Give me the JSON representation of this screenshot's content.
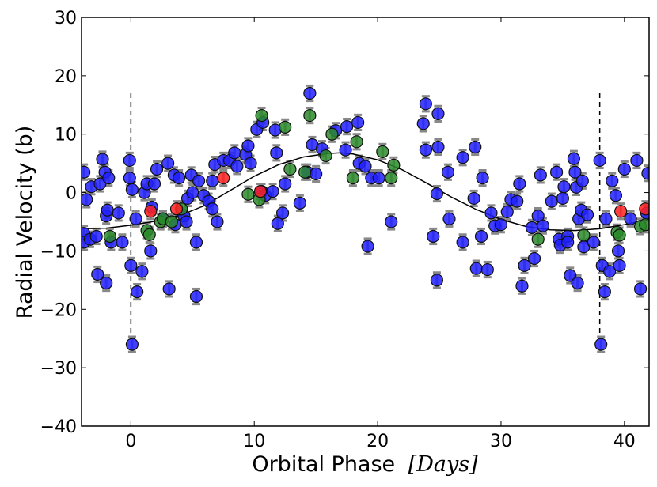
{
  "chart_data": {
    "type": "scatter",
    "xlabel": "Orbital Phase",
    "xlabel_math": "[Days]",
    "ylabel": "Radial Velocity (b)",
    "xlim": [
      -4,
      42
    ],
    "ylim": [
      -40,
      30
    ],
    "x_ticks": [
      0,
      10,
      20,
      30,
      40
    ],
    "x_tick_labels": [
      "0",
      "10",
      "20",
      "30",
      "40"
    ],
    "y_ticks": [
      -40,
      -30,
      -20,
      -10,
      0,
      10,
      20,
      30
    ],
    "y_tick_labels": [
      "−40",
      "−30",
      "−20",
      "−10",
      "0",
      "10",
      "20",
      "30"
    ],
    "grid": false,
    "period_markers": [
      0,
      38
    ],
    "model_curve": {
      "name": "fit",
      "x": [
        -4,
        -2,
        0,
        2,
        4,
        6,
        8,
        10,
        12,
        14,
        16,
        17,
        18,
        20,
        22,
        24,
        26,
        28,
        30,
        32,
        34,
        36,
        38,
        40,
        42
      ],
      "y": [
        -6.2,
        -6.1,
        -5.6,
        -4.9,
        -3.9,
        -2.2,
        0.3,
        2.8,
        4.8,
        6.1,
        6.7,
        6.8,
        6.6,
        5.6,
        3.9,
        1.6,
        -0.8,
        -2.9,
        -4.6,
        -5.8,
        -6.4,
        -6.5,
        -6.2,
        -5.5,
        -4.6
      ],
      "color": "#000000"
    },
    "series": [
      {
        "name": "blue",
        "color": "#2020ff",
        "points": [
          [
            -3.8,
            3.5
          ],
          [
            -3.8,
            -7
          ],
          [
            -3.8,
            -8.5
          ],
          [
            -3.6,
            -1.2
          ],
          [
            -3.3,
            -8
          ],
          [
            -3.2,
            1
          ],
          [
            -2.8,
            -7.5
          ],
          [
            -2.7,
            -14
          ],
          [
            -2.5,
            1.5
          ],
          [
            -2.3,
            5.7
          ],
          [
            -2.1,
            3.5
          ],
          [
            -2,
            -4
          ],
          [
            -2,
            -15.5
          ],
          [
            -1.9,
            -3
          ],
          [
            -1.8,
            2.5
          ],
          [
            -1.6,
            -8.5
          ],
          [
            -1,
            -3.5
          ],
          [
            -0.7,
            -8.5
          ],
          [
            -0.1,
            5.5
          ],
          [
            -0.1,
            2.5
          ],
          [
            0,
            -12.5
          ],
          [
            0.1,
            -26
          ],
          [
            0.1,
            0.5
          ],
          [
            0.4,
            -4.5
          ],
          [
            0.5,
            -17
          ],
          [
            0.9,
            -13.5
          ],
          [
            1.1,
            0
          ],
          [
            1.3,
            1.5
          ],
          [
            1.6,
            -10
          ],
          [
            1.7,
            -2.5
          ],
          [
            1.9,
            1.5
          ],
          [
            2.1,
            4
          ],
          [
            2.6,
            -4.5
          ],
          [
            3,
            5
          ],
          [
            3.1,
            -16.5
          ],
          [
            3.5,
            3
          ],
          [
            3.6,
            -5.5
          ],
          [
            3.9,
            2.5
          ],
          [
            4.3,
            -4
          ],
          [
            4.5,
            -5
          ],
          [
            4.6,
            -1
          ],
          [
            4.9,
            3
          ],
          [
            5,
            0
          ],
          [
            5.3,
            -8.5
          ],
          [
            5.3,
            -17.8
          ],
          [
            5.5,
            2
          ],
          [
            5.9,
            -0.5
          ],
          [
            6.3,
            -1.5
          ],
          [
            6.6,
            2
          ],
          [
            6.6,
            -2.8
          ],
          [
            6.8,
            4.8
          ],
          [
            7,
            -5
          ],
          [
            7.5,
            5.5
          ],
          [
            8,
            5.5
          ],
          [
            8.4,
            6.8
          ],
          [
            8.6,
            4.5
          ],
          [
            9.3,
            6.5
          ],
          [
            9.5,
            8
          ],
          [
            9.7,
            5
          ],
          [
            10.2,
            10.8
          ],
          [
            10.6,
            0.2
          ],
          [
            10.7,
            12
          ],
          [
            10.9,
            -0.5
          ],
          [
            11.5,
            0.2
          ],
          [
            11.7,
            10.7
          ],
          [
            11.8,
            6.8
          ],
          [
            11.9,
            -5.3
          ],
          [
            12.3,
            -3.5
          ],
          [
            12.5,
            1.5
          ],
          [
            13.7,
            -1.8
          ],
          [
            14.3,
            3.5
          ],
          [
            14.5,
            17
          ],
          [
            14.7,
            8.2
          ],
          [
            15,
            3.2
          ],
          [
            15.5,
            7.5
          ],
          [
            16.6,
            10.6
          ],
          [
            17.4,
            7.3
          ],
          [
            17.5,
            11.3
          ],
          [
            18.4,
            12
          ],
          [
            18.5,
            5
          ],
          [
            19,
            4.5
          ],
          [
            19.2,
            -9.2
          ],
          [
            19.5,
            2.5
          ],
          [
            20.1,
            2.5
          ],
          [
            21.1,
            -5
          ],
          [
            23.7,
            11.8
          ],
          [
            23.9,
            15.2
          ],
          [
            23.9,
            7.3
          ],
          [
            24.5,
            -7.5
          ],
          [
            24.8,
            -0.2
          ],
          [
            24.8,
            -15
          ],
          [
            24.9,
            13.5
          ],
          [
            24.9,
            7.8
          ],
          [
            25.7,
            3.5
          ],
          [
            25.8,
            -4.5
          ],
          [
            26.9,
            6
          ],
          [
            26.9,
            -8.5
          ],
          [
            27.8,
            -1
          ],
          [
            27.9,
            7.8
          ],
          [
            28,
            -13
          ],
          [
            28.4,
            -7.5
          ],
          [
            28.5,
            2.5
          ],
          [
            28.9,
            -13.2
          ],
          [
            29.2,
            -3.5
          ],
          [
            29.5,
            -5.7
          ],
          [
            30,
            -5.5
          ],
          [
            30.5,
            -3.3
          ],
          [
            30.8,
            -1.2
          ],
          [
            31.3,
            -1.5
          ],
          [
            31.5,
            1.5
          ],
          [
            31.7,
            -16
          ],
          [
            31.9,
            -12.5
          ],
          [
            32.5,
            -6
          ],
          [
            32.7,
            -11.3
          ],
          [
            33,
            -4
          ],
          [
            33.2,
            3
          ],
          [
            33.4,
            -5.7
          ],
          [
            34.1,
            -1.5
          ],
          [
            34.5,
            3.5
          ],
          [
            34.7,
            -8
          ],
          [
            34.8,
            -9
          ],
          [
            35,
            -1
          ],
          [
            35.1,
            1
          ],
          [
            35.4,
            -7.5
          ],
          [
            35.4,
            -8.5
          ],
          [
            35.6,
            -14.2
          ],
          [
            35.9,
            5.8
          ],
          [
            36,
            3.5
          ],
          [
            36.1,
            0.9
          ],
          [
            36.2,
            -15.5
          ],
          [
            36.3,
            -4.5
          ],
          [
            36.5,
            -3
          ],
          [
            36.6,
            2
          ],
          [
            36.7,
            -9.3
          ],
          [
            37,
            -3.8
          ],
          [
            37.5,
            -8.5
          ],
          [
            38,
            5.5
          ],
          [
            38.1,
            -26
          ],
          [
            38.2,
            -12.5
          ],
          [
            38.4,
            -17
          ],
          [
            38.5,
            -4.5
          ],
          [
            38.8,
            -13.5
          ],
          [
            39,
            2
          ],
          [
            39.3,
            -0.5
          ],
          [
            39.5,
            -10
          ],
          [
            39.6,
            -12.5
          ],
          [
            40,
            4
          ],
          [
            40.5,
            -4.5
          ],
          [
            41,
            5.5
          ],
          [
            41.3,
            -16.5
          ],
          [
            41.8,
            -3.5
          ],
          [
            41.9,
            3.3
          ]
        ]
      },
      {
        "name": "green",
        "color": "#2a8a2a",
        "points": [
          [
            -1.7,
            -7.5
          ],
          [
            1.3,
            -6.5
          ],
          [
            1.5,
            -7.2
          ],
          [
            2.4,
            -5
          ],
          [
            2.6,
            -4.5
          ],
          [
            3.3,
            -5
          ],
          [
            4.1,
            -2.8
          ],
          [
            9.5,
            -0.3
          ],
          [
            10.4,
            -1.2
          ],
          [
            10.6,
            13.2
          ],
          [
            12.5,
            11.2
          ],
          [
            12.9,
            4
          ],
          [
            14.1,
            3.5
          ],
          [
            14.5,
            13.2
          ],
          [
            15.8,
            6.3
          ],
          [
            16.3,
            10
          ],
          [
            18,
            2.5
          ],
          [
            18.3,
            8.7
          ],
          [
            20.4,
            7
          ],
          [
            21.1,
            2.5
          ],
          [
            21.3,
            4.7
          ],
          [
            33,
            -8
          ],
          [
            36.7,
            -7.3
          ],
          [
            39.4,
            -6.8
          ],
          [
            39.6,
            -7.3
          ],
          [
            41.3,
            -5.8
          ],
          [
            41.7,
            -5.5
          ]
        ]
      },
      {
        "name": "red",
        "color": "#ff2020",
        "points": [
          [
            1.6,
            -3.2
          ],
          [
            3.7,
            -2.8
          ],
          [
            7.5,
            2.5
          ],
          [
            10.5,
            0.2
          ],
          [
            39.7,
            -3.2
          ],
          [
            41.7,
            -2.8
          ]
        ]
      }
    ]
  }
}
